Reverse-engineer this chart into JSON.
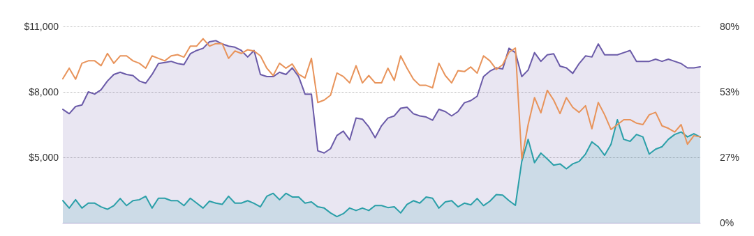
{
  "chart_data": {
    "type": "line",
    "categories": [
      null,
      null,
      null,
      null,
      null,
      null,
      null,
      null,
      null,
      null,
      null,
      null,
      null,
      null,
      null,
      null,
      null,
      null,
      null,
      null,
      null,
      null,
      null,
      null,
      null,
      null,
      null,
      null,
      null,
      null,
      null,
      null,
      null,
      null,
      null,
      null,
      null,
      null,
      null,
      null,
      null,
      null,
      null,
      null,
      null,
      null,
      null,
      null,
      null,
      null,
      null,
      null,
      null,
      null,
      null,
      null,
      null,
      null,
      null,
      null,
      null,
      null,
      null,
      null,
      null,
      null,
      null,
      null,
      null,
      null,
      null,
      null,
      null,
      null,
      null,
      null,
      null,
      null,
      null,
      null,
      null,
      null,
      null,
      null,
      null,
      null,
      null,
      null,
      null,
      null,
      null,
      null,
      null,
      null,
      null,
      null,
      null,
      null,
      null,
      null,
      null
    ],
    "series": [
      {
        "type": "area",
        "color": "#6a5aa8",
        "values": [
          7200,
          7000,
          7330,
          7400,
          8000,
          7900,
          8100,
          8500,
          8800,
          8900,
          8800,
          8750,
          8500,
          8400,
          8800,
          9300,
          9350,
          9400,
          9300,
          9250,
          9750,
          9900,
          10000,
          10300,
          10350,
          10200,
          10100,
          10050,
          9900,
          9600,
          9900,
          8800,
          8700,
          8700,
          8900,
          8800,
          9100,
          8700,
          7900,
          7900,
          5300,
          5200,
          5400,
          6000,
          6200,
          5800,
          6800,
          6750,
          6400,
          5900,
          6450,
          6800,
          6900,
          7250,
          7300,
          7000,
          6900,
          6850,
          6700,
          7200,
          7100,
          6900,
          7100,
          7500,
          7600,
          7800,
          8700,
          8950,
          9100,
          9050,
          10000,
          9800,
          8700,
          9000,
          9800,
          9400,
          9700,
          9750,
          9180,
          9100,
          8850,
          9300,
          9650,
          9600,
          10200,
          9700,
          9700,
          9700,
          9800,
          9900,
          9400,
          9400,
          9400,
          9500,
          9400,
          9500,
          9400,
          9300,
          9100,
          9100,
          9150
        ]
      },
      {
        "type": "area",
        "axis": "y2",
        "color": "#2a9fa8",
        "values": [
          9,
          6,
          9.4,
          6,
          8,
          8,
          6.5,
          5.5,
          7,
          9.9,
          7,
          9,
          9.4,
          10.8,
          6,
          10,
          10,
          9,
          9,
          7,
          10,
          8,
          6,
          8.8,
          8,
          7.5,
          10.8,
          8,
          8,
          9,
          7.9,
          6.5,
          10.8,
          12,
          9.4,
          12,
          10.5,
          10.5,
          8,
          8.5,
          6.5,
          6,
          4,
          2.5,
          3.7,
          6,
          5,
          6,
          5,
          7,
          7,
          6.2,
          6.5,
          4,
          7.5,
          9,
          8,
          10.5,
          10,
          6,
          8.5,
          9,
          6.5,
          8,
          7.3,
          9.9,
          7,
          8.8,
          11.5,
          11.3,
          9,
          7.1,
          25,
          34,
          24.5,
          28.4,
          26,
          23.5,
          24,
          22,
          24,
          25,
          28,
          33,
          31,
          27.5,
          32,
          42,
          34,
          33.2,
          36,
          35,
          28,
          30,
          31,
          34,
          36,
          37,
          35,
          36.3,
          34.9
        ]
      },
      {
        "axis": "y2",
        "color": "#e8935a",
        "values": [
          58.7,
          63,
          58.5,
          65,
          66,
          66,
          64,
          69,
          65,
          68,
          68,
          66,
          65,
          63,
          68,
          67,
          66,
          68,
          68.5,
          67.5,
          72,
          72,
          75,
          72,
          73,
          73,
          67,
          70,
          69,
          70.5,
          70,
          68,
          63,
          60,
          65,
          63,
          64.7,
          60.5,
          59,
          67,
          49,
          50,
          52,
          61,
          59.6,
          57,
          64,
          57,
          60,
          57,
          57,
          63,
          58,
          68,
          63,
          58.5,
          56,
          56,
          55,
          65,
          60,
          57,
          62,
          61.6,
          63.5,
          61,
          68,
          66,
          62.5,
          64.4,
          69.5,
          71.2,
          26,
          40,
          51,
          44.8,
          54,
          50,
          44.5,
          51,
          47,
          45,
          47.7,
          38.3,
          49,
          44,
          38,
          40,
          42,
          42,
          40.6,
          40,
          44,
          45,
          39.5,
          38.5,
          37,
          40,
          32,
          35.5,
          35
        ]
      }
    ],
    "ylim": [
      2000,
      11000
    ],
    "yticks": [
      {
        "value": 2000,
        "label": null
      },
      {
        "value": 5000,
        "label": "$5,000"
      },
      {
        "value": 8000,
        "label": "$8,000"
      },
      {
        "value": 11000,
        "label": "$11,000"
      }
    ],
    "y2lim": [
      0,
      80
    ],
    "y2ticks": [
      {
        "value": 0,
        "label": "0%"
      },
      {
        "value": 26.67,
        "label": "27%"
      },
      {
        "value": 53.33,
        "label": "53%"
      },
      {
        "value": 80,
        "label": "80%"
      }
    ],
    "grid": "y",
    "tick_labels": "y",
    "marker": "none",
    "line_style": "solid"
  }
}
